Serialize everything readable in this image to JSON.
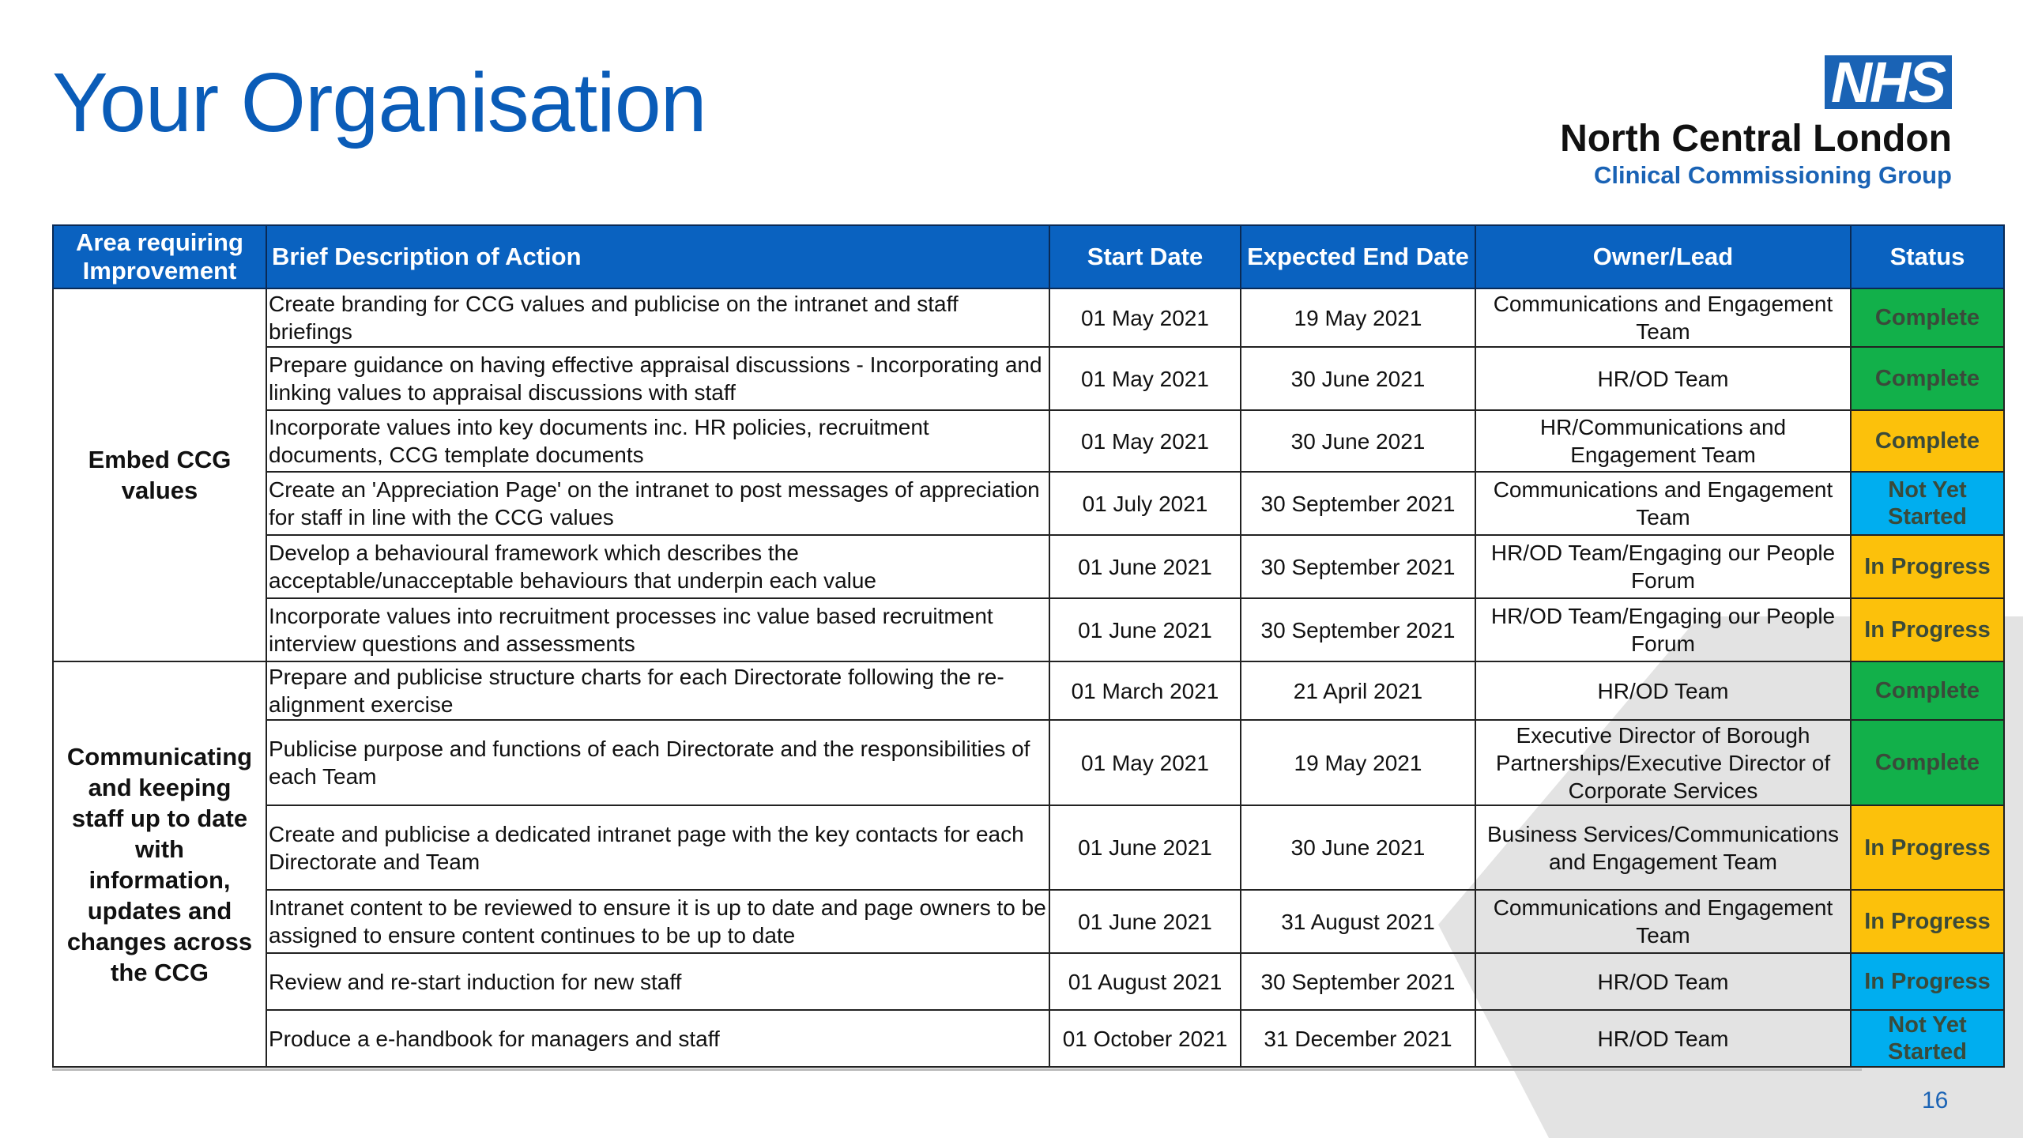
{
  "title": "Your Organisation",
  "logo": {
    "badge": "NHS",
    "line1": "North Central London",
    "line2": "Clinical Commissioning Group"
  },
  "table": {
    "headers": [
      "Area requiring Improvement",
      "Brief Description of Action",
      "Start Date",
      "Expected End Date",
      "Owner/Lead",
      "Status"
    ],
    "groups": [
      {
        "area": "Embed CCG values",
        "rows": [
          {
            "desc": "Create branding for CCG values and publicise on the intranet and staff briefings",
            "start": "01 May 2021",
            "end": "19 May 2021",
            "owner": "Communications and Engagement Team",
            "status": "Complete",
            "status_color": "green"
          },
          {
            "desc": "Prepare guidance on having effective appraisal discussions - Incorporating and linking values to appraisal discussions with staff",
            "start": "01 May 2021",
            "end": "30 June 2021",
            "owner": "HR/OD Team",
            "status": "Complete",
            "status_color": "green"
          },
          {
            "desc": "Incorporate values into key documents inc. HR policies, recruitment documents, CCG template documents",
            "start": "01 May 2021",
            "end": "30 June 2021",
            "owner": "HR/Communications and Engagement Team",
            "status": "Complete",
            "status_color": "amber"
          },
          {
            "desc": "Create an 'Appreciation Page' on the intranet to post messages of appreciation for staff in line with the CCG values",
            "start": "01 July 2021",
            "end": "30 September 2021",
            "owner": "Communications and Engagement Team",
            "status": "Not Yet Started",
            "status_color": "blue"
          },
          {
            "desc": "Develop a behavioural framework which describes the acceptable/unacceptable behaviours that underpin each value",
            "start": "01 June 2021",
            "end": "30 September 2021",
            "owner": "HR/OD Team/Engaging our People Forum",
            "status": "In Progress",
            "status_color": "amber"
          },
          {
            "desc": "Incorporate values into recruitment processes inc value based recruitment interview questions and assessments",
            "start": "01 June 2021",
            "end": "30 September 2021",
            "owner": "HR/OD Team/Engaging our People Forum",
            "status": "In Progress",
            "status_color": "amber"
          }
        ]
      },
      {
        "area": "Communicating and keeping staff up to date with information, updates and changes across the CCG",
        "rows": [
          {
            "desc": "Prepare and publicise structure charts for each Directorate following the re-alignment exercise",
            "start": "01 March 2021",
            "end": "21 April 2021",
            "owner": "HR/OD Team",
            "status": "Complete",
            "status_color": "green"
          },
          {
            "desc": "Publicise purpose and functions of each Directorate and the responsibilities of each Team",
            "start": "01 May 2021",
            "end": "19 May 2021",
            "owner": "Executive Director of Borough Partnerships/Executive Director of Corporate Services",
            "status": "Complete",
            "status_color": "green"
          },
          {
            "desc": "Create and publicise a dedicated intranet page with the key contacts for each Directorate and Team",
            "start": "01 June 2021",
            "end": "30 June 2021",
            "owner": "Business Services/Communications and Engagement Team",
            "status": "In Progress",
            "status_color": "amber"
          },
          {
            "desc": "Intranet content to be reviewed to ensure it is up to date and page owners to be assigned to ensure content continues to be up to date",
            "start": "01 June 2021",
            "end": "31 August 2021",
            "owner": "Communications and Engagement Team",
            "status": "In Progress",
            "status_color": "amber"
          },
          {
            "desc": "Review and re-start induction for new staff",
            "start": "01 August 2021",
            "end": "30 September 2021",
            "owner": "HR/OD Team",
            "status": "In Progress",
            "status_color": "blue"
          },
          {
            "desc": "Produce a e-handbook for managers and staff",
            "start": "01 October 2021",
            "end": "31 December 2021",
            "owner": "HR/OD Team",
            "status": "Not Yet Started",
            "status_color": "blue"
          }
        ]
      }
    ]
  },
  "page_number": "16",
  "colors": {
    "green": "#12b04a",
    "amber": "#fcc10b",
    "blue": "#00aeef",
    "header": "#0a62c0",
    "title": "#0a5cb8"
  }
}
